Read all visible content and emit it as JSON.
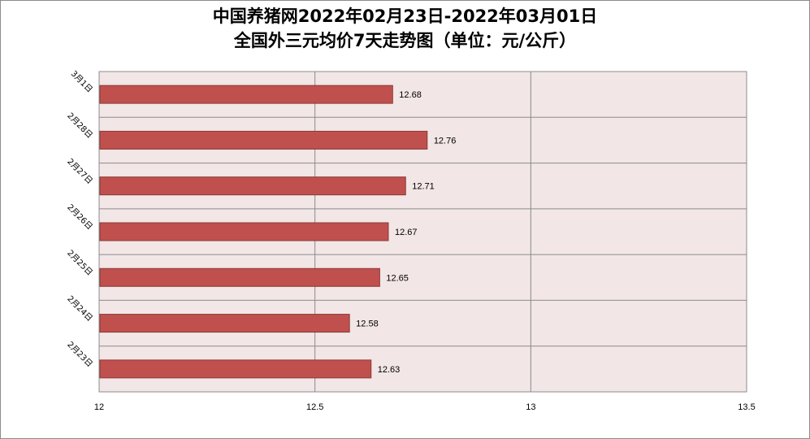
{
  "chart_data": {
    "type": "bar",
    "orientation": "horizontal",
    "title_line1": "中国养猪网2022年02月23日-2022年03月01日",
    "title_line2": "全国外三元均价7天走势图（单位：元/公斤）",
    "categories": [
      "2月23日",
      "2月24日",
      "2月25日",
      "2月26日",
      "2月27日",
      "2月28日",
      "3月1日"
    ],
    "values": [
      12.63,
      12.58,
      12.65,
      12.67,
      12.71,
      12.76,
      12.68
    ],
    "data_labels": [
      "12.63",
      "12.58",
      "12.65",
      "12.67",
      "12.71",
      "12.76",
      "12.68"
    ],
    "x_ticks": [
      "12",
      "12.5",
      "13",
      "13.5"
    ],
    "xlim": [
      12,
      13.5
    ],
    "grid": true,
    "legend": "none",
    "bar_color": "#c0504d",
    "plot_bg": "#f2e6e6"
  }
}
